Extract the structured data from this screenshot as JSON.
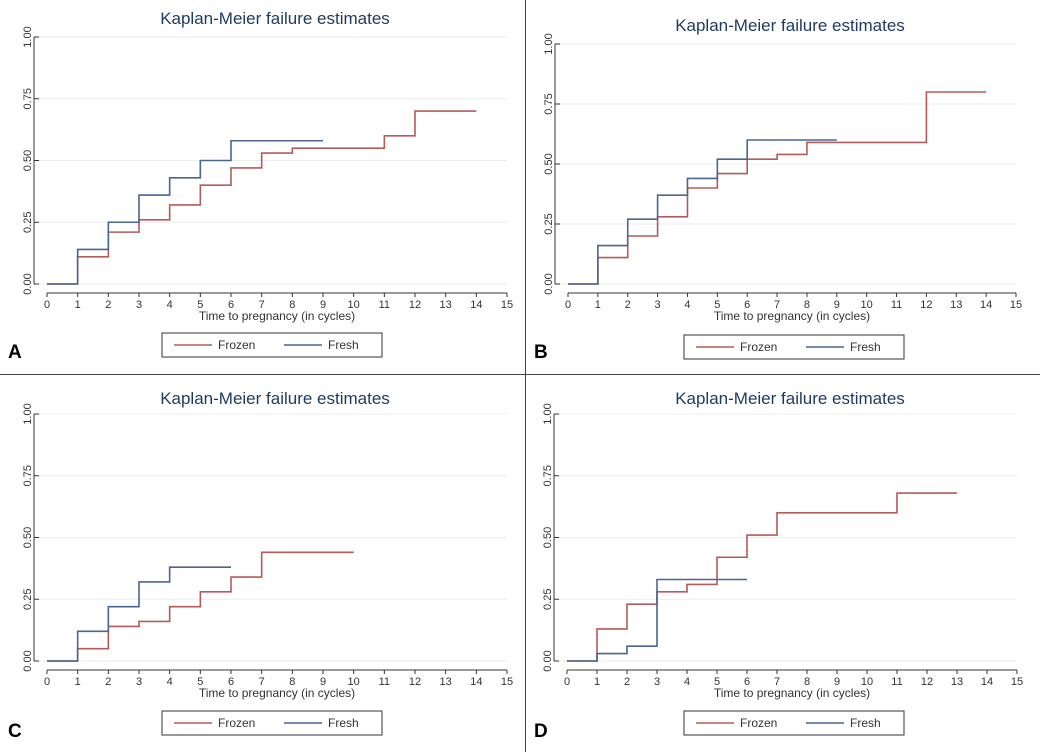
{
  "figure": {
    "panel_labels": [
      "A",
      "B",
      "C",
      "D"
    ],
    "colors": {
      "frozen": "#b55a5a",
      "fresh": "#4a6591",
      "grid": "#ececec",
      "axis": "#333333",
      "divider": "#444444"
    }
  },
  "chart_data": [
    {
      "panel": "A",
      "type": "line",
      "step": true,
      "title": "Kaplan-Meier failure estimates",
      "xlabel": "Time to pregnancy (in cycles)",
      "ylabel": "",
      "xlim": [
        0,
        15
      ],
      "ylim": [
        0,
        1
      ],
      "xticks": [
        "0",
        "1",
        "2",
        "3",
        "4",
        "5",
        "6",
        "7",
        "8",
        "9",
        "10",
        "11",
        "12",
        "13",
        "14",
        "15"
      ],
      "yticks": [
        "0.00",
        "0.25",
        "0.50",
        "0.75",
        "1.00"
      ],
      "grid": true,
      "legend": "bottom",
      "series": [
        {
          "name": "Frozen",
          "x": [
            0,
            1,
            2,
            3,
            4,
            5,
            6,
            7,
            8,
            9,
            10,
            11,
            12,
            14
          ],
          "y": [
            0,
            0.11,
            0.21,
            0.26,
            0.32,
            0.4,
            0.47,
            0.53,
            0.55,
            0.55,
            0.55,
            0.6,
            0.7,
            0.7
          ]
        },
        {
          "name": "Fresh",
          "x": [
            0,
            1,
            2,
            3,
            4,
            5,
            6,
            9
          ],
          "y": [
            0,
            0.14,
            0.25,
            0.36,
            0.43,
            0.5,
            0.58,
            0.58
          ]
        }
      ]
    },
    {
      "panel": "B",
      "type": "line",
      "step": true,
      "title": "Kaplan-Meier failure estimates",
      "xlabel": "Time to pregnancy (in cycles)",
      "ylabel": "",
      "xlim": [
        0,
        15
      ],
      "ylim": [
        0,
        1
      ],
      "xticks": [
        "0",
        "1",
        "2",
        "3",
        "4",
        "5",
        "6",
        "7",
        "8",
        "9",
        "10",
        "11",
        "12",
        "13",
        "14",
        "15"
      ],
      "yticks": [
        "0.00",
        "0.25",
        "0.50",
        "0.75",
        "1.00"
      ],
      "grid": true,
      "legend": "bottom",
      "series": [
        {
          "name": "Frozen",
          "x": [
            0,
            1,
            2,
            3,
            4,
            5,
            6,
            7,
            8,
            9,
            12,
            14
          ],
          "y": [
            0,
            0.11,
            0.2,
            0.28,
            0.4,
            0.46,
            0.52,
            0.54,
            0.59,
            0.59,
            0.8,
            0.8
          ]
        },
        {
          "name": "Fresh",
          "x": [
            0,
            1,
            2,
            3,
            4,
            5,
            6,
            9
          ],
          "y": [
            0,
            0.16,
            0.27,
            0.37,
            0.44,
            0.52,
            0.6,
            0.6
          ]
        }
      ]
    },
    {
      "panel": "C",
      "type": "line",
      "step": true,
      "title": "Kaplan-Meier failure estimates",
      "xlabel": "Time to pregnancy (in cycles)",
      "ylabel": "",
      "xlim": [
        0,
        15
      ],
      "ylim": [
        0,
        1
      ],
      "xticks": [
        "0",
        "1",
        "2",
        "3",
        "4",
        "5",
        "6",
        "7",
        "8",
        "9",
        "10",
        "11",
        "12",
        "13",
        "14",
        "15"
      ],
      "yticks": [
        "0.00",
        "0.25",
        "0.50",
        "0.75",
        "1.00"
      ],
      "grid": true,
      "legend": "bottom",
      "series": [
        {
          "name": "Frozen",
          "x": [
            0,
            1,
            2,
            3,
            4,
            5,
            6,
            7,
            10
          ],
          "y": [
            0,
            0.05,
            0.14,
            0.16,
            0.22,
            0.28,
            0.34,
            0.44,
            0.44
          ]
        },
        {
          "name": "Fresh",
          "x": [
            0,
            1,
            2,
            3,
            4,
            6
          ],
          "y": [
            0,
            0.12,
            0.22,
            0.32,
            0.38,
            0.38
          ]
        }
      ]
    },
    {
      "panel": "D",
      "type": "line",
      "step": true,
      "title": "Kaplan-Meier failure estimates",
      "xlabel": "Time to pregnancy (in cycles)",
      "ylabel": "",
      "xlim": [
        0,
        15
      ],
      "ylim": [
        0,
        1
      ],
      "xticks": [
        "0",
        "1",
        "2",
        "3",
        "4",
        "5",
        "6",
        "7",
        "8",
        "9",
        "10",
        "11",
        "12",
        "13",
        "14",
        "15"
      ],
      "yticks": [
        "0.00",
        "0.25",
        "0.50",
        "0.75",
        "1.00"
      ],
      "grid": true,
      "legend": "bottom",
      "series": [
        {
          "name": "Frozen",
          "x": [
            0,
            1,
            2,
            3,
            4,
            5,
            6,
            7,
            8,
            9,
            10,
            11,
            13
          ],
          "y": [
            0,
            0.13,
            0.23,
            0.28,
            0.31,
            0.42,
            0.51,
            0.6,
            0.6,
            0.6,
            0.6,
            0.68,
            0.68
          ]
        },
        {
          "name": "Fresh",
          "x": [
            0,
            1,
            2,
            3,
            6
          ],
          "y": [
            0,
            0.03,
            0.06,
            0.33,
            0.33
          ]
        }
      ]
    }
  ]
}
